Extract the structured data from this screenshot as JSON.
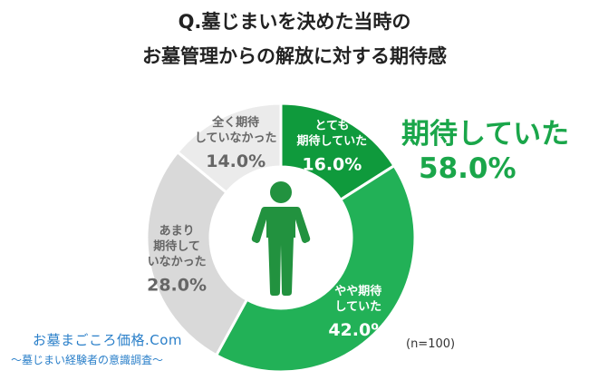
{
  "title_line1": "Q.墓じまいを決めた当時の",
  "title_line2": "お墓管理からの解放に対する期待感",
  "highlight": {
    "label": "期待していた",
    "value": "58.0%"
  },
  "sample_size": "(n=100)",
  "logo": {
    "line1": "お墓まごころ価格.Com",
    "line2": "〜墓じまい経験者の意識調査〜"
  },
  "chart_data": {
    "type": "pie",
    "title": "Q.墓じまいを決めた当時のお墓管理からの解放に対する期待感",
    "categories": [
      "とても期待していた",
      "やや期待していた",
      "あまり期待していなかった",
      "全く期待していなかった"
    ],
    "values": [
      16.0,
      42.0,
      28.0,
      14.0
    ],
    "series": [
      {
        "name": "とても期待していた",
        "label_lines": [
          "とても",
          "期待していた"
        ],
        "value_text": "16.0%",
        "value": 16.0,
        "color": "#0f9a3c",
        "text_color": "#ffffff"
      },
      {
        "name": "やや期待していた",
        "label_lines": [
          "やや期待",
          "していた"
        ],
        "value_text": "42.0%",
        "value": 42.0,
        "color": "#22b157",
        "text_color": "#ffffff"
      },
      {
        "name": "あまり期待していなかった",
        "label_lines": [
          "あまり",
          "期待して",
          "いなかった"
        ],
        "value_text": "28.0%",
        "value": 28.0,
        "color": "#d9d9d9",
        "text_color": "#666666"
      },
      {
        "name": "全く期待していなかった",
        "label_lines": [
          "全く期待",
          "していなかった"
        ],
        "value_text": "14.0%",
        "value": 14.0,
        "color": "#ebebeb",
        "text_color": "#666666"
      }
    ],
    "center_icon": "person-icon",
    "legend": "none"
  }
}
